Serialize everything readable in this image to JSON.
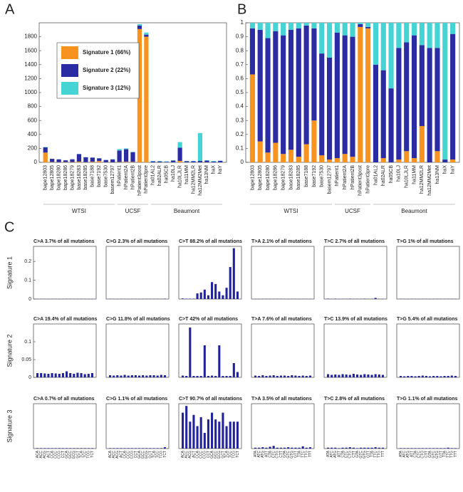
{
  "chart_data": [
    {
      "type": "stacked_bar",
      "panel": "A",
      "legend": "upper left",
      "ylim": [
        0,
        2000
      ],
      "yticks": [
        0,
        200,
        400,
        600,
        800,
        1000,
        1200,
        1400,
        1600,
        1800
      ],
      "categories": [
        "bape12803",
        "bape12805",
        "bape18280",
        "bape18286",
        "bape18279",
        "base18283",
        "base18285",
        "base7188",
        "base7192",
        "base7530",
        "basem12797",
        "hPatient1",
        "hPatient2A",
        "hPatient2B",
        "hPatient3post",
        "hPatient3pre",
        "ha01AL2",
        "ha02ALR",
        "ha05CB",
        "ha10LJ",
        "ha10LJLR",
        "ha11MM",
        "ha12MM2LR",
        "ha12MM2Met",
        "ha13NM",
        "haX",
        "haY"
      ],
      "groups": [
        {
          "label": "WTSI",
          "size": 11
        },
        {
          "label": "UCSF",
          "size": 5
        },
        {
          "label": "Beaumont",
          "size": 11
        }
      ],
      "series": [
        {
          "name": "Signature 1 (66%)",
          "color": "#f7931e",
          "values": [
            140,
            5,
            3,
            4,
            4,
            10,
            3,
            8,
            18,
            2,
            1,
            5,
            8,
            6,
            1910,
            1800,
            0,
            1,
            0,
            1,
            20,
            1,
            0,
            0,
            1,
            0,
            1
          ]
        },
        {
          "name": "Signature 2 (22%)",
          "color": "#2b2ca3",
          "values": [
            75,
            45,
            40,
            25,
            40,
            108,
            70,
            60,
            40,
            32,
            40,
            165,
            180,
            140,
            50,
            30,
            14,
            12,
            8,
            24,
            190,
            15,
            16,
            20,
            24,
            10,
            20
          ]
        },
        {
          "name": "Signature 3 (12%)",
          "color": "#45d3d3",
          "values": [
            5,
            0,
            2,
            1,
            1,
            2,
            2,
            2,
            2,
            1,
            4,
            20,
            12,
            4,
            20,
            30,
            6,
            7,
            7,
            5,
            80,
            4,
            4,
            400,
            5,
            10,
            4
          ]
        }
      ]
    },
    {
      "type": "stacked_bar",
      "panel": "B",
      "ylim": [
        0,
        1
      ],
      "yticks": [
        0,
        0.1,
        0.2,
        0.3,
        0.4,
        0.5,
        0.6,
        0.7,
        0.8,
        0.9,
        1
      ],
      "categories": [
        "bape12803",
        "bape12805",
        "bape18280",
        "bape18286",
        "bape18279",
        "base18283",
        "base18285",
        "base7188",
        "base7192",
        "base7530",
        "basem12797",
        "hPatient1",
        "hPatient2A",
        "hPatient2B",
        "hPatient3post",
        "hPatient3pre",
        "ha01AL2",
        "ha02ALR",
        "ha05CB",
        "ha10LJ",
        "ha10LJLR",
        "ha11MM",
        "ha12MM2LR",
        "ha12MM2Met",
        "ha13NM",
        "haX",
        "haY"
      ],
      "groups": [
        {
          "label": "WTSI",
          "size": 11
        },
        {
          "label": "UCSF",
          "size": 5
        },
        {
          "label": "Beaumont",
          "size": 11
        }
      ],
      "series": [
        {
          "color": "#f7931e",
          "values": [
            0.63,
            0.15,
            0.07,
            0.14,
            0.06,
            0.09,
            0.04,
            0.13,
            0.3,
            0.05,
            0.02,
            0.03,
            0.06,
            0.04,
            0.97,
            0.96,
            0,
            0.03,
            0,
            0.02,
            0.08,
            0.03,
            0.26,
            0,
            0.08,
            0,
            0.02
          ]
        },
        {
          "color": "#2b2ca3",
          "values": [
            0.33,
            0.8,
            0.82,
            0.8,
            0.85,
            0.86,
            0.92,
            0.85,
            0.66,
            0.73,
            0.73,
            0.9,
            0.85,
            0.86,
            0.02,
            0.01,
            0.7,
            0.63,
            0.53,
            0.8,
            0.78,
            0.88,
            0.58,
            0.82,
            0.74,
            0.02,
            0.9
          ]
        },
        {
          "color": "#45d3d3",
          "values": [
            0.04,
            0.05,
            0.11,
            0.06,
            0.09,
            0.05,
            0.04,
            0.02,
            0.04,
            0.22,
            0.25,
            0.07,
            0.09,
            0.1,
            0.01,
            0.03,
            0.3,
            0.34,
            0.47,
            0.18,
            0.14,
            0.09,
            0.16,
            0.18,
            0.18,
            0.98,
            0.08
          ]
        }
      ]
    },
    {
      "type": "bar",
      "panel": "C",
      "ylabel": "Signature 1",
      "title": "C>A 3.7% of all mutations",
      "color": "#22229a",
      "ylim": [
        0,
        0.28
      ],
      "yticks": [
        0,
        0.1,
        0.2
      ],
      "values": [
        0.001,
        0.001,
        0.001,
        0.001,
        0.001,
        0.001,
        0.001,
        0.001,
        0.001,
        0.001,
        0.001,
        0.001,
        0.001,
        0.001,
        0.001,
        0.001
      ]
    },
    {
      "type": "bar",
      "title": "C>G 2.3% of all mutations",
      "color": "#22229a",
      "ylim": [
        0,
        0.28
      ],
      "values": [
        0.001,
        0.001,
        0.001,
        0.001,
        0.001,
        0.001,
        0.001,
        0.001,
        0.001,
        0.001,
        0.001,
        0.001,
        0.001,
        0.001,
        0.001,
        0.002
      ]
    },
    {
      "type": "bar",
      "title": "C>T 88.2% of all mutations",
      "color": "#22229a",
      "ylim": [
        0,
        0.28
      ],
      "values": [
        0.003,
        0.002,
        0.002,
        0.002,
        0.03,
        0.035,
        0.05,
        0.02,
        0.09,
        0.08,
        0.04,
        0.02,
        0.06,
        0.17,
        0.27,
        0.04
      ]
    },
    {
      "type": "bar",
      "title": "T>A 2.1% of all mutations",
      "color": "#22229a",
      "ylim": [
        0,
        0.28
      ],
      "values": [
        0.001,
        0.001,
        0.001,
        0.001,
        0.001,
        0.001,
        0.001,
        0.001,
        0.001,
        0.001,
        0.001,
        0.001,
        0.001,
        0.001,
        0.001,
        0.001
      ]
    },
    {
      "type": "bar",
      "title": "T>C 2.7% of all mutations",
      "color": "#22229a",
      "ylim": [
        0,
        0.28
      ],
      "values": [
        0.002,
        0.001,
        0.002,
        0.001,
        0.001,
        0.001,
        0.002,
        0.001,
        0.001,
        0.001,
        0.002,
        0.001,
        0.001,
        0.006,
        0.001,
        0.001
      ]
    },
    {
      "type": "bar",
      "title": "T>G 1% of all mutations",
      "color": "#22229a",
      "ylim": [
        0,
        0.28
      ],
      "values": [
        0.001,
        0.001,
        0.001,
        0.001,
        0.001,
        0.001,
        0.001,
        0.001,
        0.001,
        0.001,
        0.001,
        0.001,
        0.001,
        0.001,
        0.001,
        0.001
      ]
    },
    {
      "type": "bar",
      "ylabel": "Signature 2",
      "title": "C>A 19.4% of all mutations",
      "color": "#22229a",
      "ylim": [
        0,
        0.15
      ],
      "yticks": [
        0,
        0.05,
        0.1
      ],
      "values": [
        0.012,
        0.012,
        0.011,
        0.01,
        0.012,
        0.011,
        0.01,
        0.012,
        0.017,
        0.012,
        0.01,
        0.013,
        0.012,
        0.009,
        0.01,
        0.012
      ]
    },
    {
      "type": "bar",
      "title": "C>G 11.8% of all mutations",
      "color": "#22229a",
      "ylim": [
        0,
        0.15
      ],
      "values": [
        0.006,
        0.005,
        0.006,
        0.005,
        0.007,
        0.005,
        0.006,
        0.006,
        0.005,
        0.006,
        0.005,
        0.006,
        0.006,
        0.005,
        0.007,
        0.006
      ]
    },
    {
      "type": "bar",
      "title": "C>T 42% of all mutations",
      "color": "#22229a",
      "ylim": [
        0,
        0.15
      ],
      "values": [
        0.005,
        0.004,
        0.14,
        0.004,
        0.004,
        0.004,
        0.09,
        0.004,
        0.005,
        0.004,
        0.09,
        0.004,
        0.004,
        0.004,
        0.04,
        0.015
      ]
    },
    {
      "type": "bar",
      "title": "T>A 7.6% of all mutations",
      "color": "#22229a",
      "ylim": [
        0,
        0.15
      ],
      "values": [
        0.005,
        0.004,
        0.006,
        0.004,
        0.005,
        0.006,
        0.004,
        0.005,
        0.005,
        0.004,
        0.006,
        0.005,
        0.004,
        0.005,
        0.004,
        0.005
      ]
    },
    {
      "type": "bar",
      "title": "T>C 13.9% of all mutations",
      "color": "#22229a",
      "ylim": [
        0,
        0.15
      ],
      "values": [
        0.009,
        0.007,
        0.008,
        0.007,
        0.009,
        0.008,
        0.007,
        0.01,
        0.008,
        0.007,
        0.009,
        0.008,
        0.007,
        0.009,
        0.008,
        0.007
      ]
    },
    {
      "type": "bar",
      "title": "T>G 5.4% of all mutations",
      "color": "#22229a",
      "ylim": [
        0,
        0.15
      ],
      "values": [
        0.004,
        0.003,
        0.004,
        0.004,
        0.003,
        0.004,
        0.005,
        0.004,
        0.003,
        0.004,
        0.004,
        0.003,
        0.004,
        0.004,
        0.005,
        0.004
      ]
    },
    {
      "type": "bar",
      "ylabel": "Signature 3",
      "title": "C>A 0.7% of all mutations",
      "color": "#22229a",
      "ylim": [
        0,
        0.1
      ],
      "categories": [
        "ACA",
        "ACC",
        "ACG",
        "ACT",
        "CCA",
        "CCC",
        "CCG",
        "CCT",
        "GCA",
        "GCC",
        "GCG",
        "GCT",
        "TCA",
        "TCC",
        "TCG",
        "TCT"
      ],
      "values": [
        0.001,
        0.001,
        0.001,
        0.001,
        0.001,
        0.001,
        0.001,
        0.001,
        0.001,
        0.001,
        0.001,
        0.001,
        0.001,
        0.001,
        0.001,
        0.001
      ]
    },
    {
      "type": "bar",
      "title": "C>G 1.1% of all mutations",
      "color": "#22229a",
      "ylim": [
        0,
        0.1
      ],
      "categories": [
        "ACA",
        "ACC",
        "ACG",
        "ACT",
        "CCA",
        "CCC",
        "CCG",
        "CCT",
        "GCA",
        "GCC",
        "GCG",
        "GCT",
        "TCA",
        "TCC",
        "TCG",
        "TCT"
      ],
      "values": [
        0.001,
        0.001,
        0.001,
        0.001,
        0.001,
        0.001,
        0.001,
        0.001,
        0.001,
        0.001,
        0.001,
        0.001,
        0.001,
        0.001,
        0.001,
        0.003
      ]
    },
    {
      "type": "bar",
      "title": "C>T 90.7% of all mutations",
      "color": "#22229a",
      "ylim": [
        0,
        0.1
      ],
      "categories": [
        "ACA",
        "ACC",
        "ACG",
        "ACT",
        "CCA",
        "CCC",
        "CCG",
        "CCT",
        "GCA",
        "GCC",
        "GCG",
        "GCT",
        "TCA",
        "TCC",
        "TCG",
        "TCT"
      ],
      "values": [
        0.08,
        0.095,
        0.06,
        0.075,
        0.05,
        0.07,
        0.035,
        0.065,
        0.08,
        0.065,
        0.06,
        0.08,
        0.05,
        0.06,
        0.06,
        0.06
      ]
    },
    {
      "type": "bar",
      "title": "T>A 3.5% of all mutations",
      "color": "#22229a",
      "ylim": [
        0,
        0.1
      ],
      "categories": [
        "ATA",
        "ATC",
        "ATG",
        "ATT",
        "CTA",
        "CTC",
        "CTG",
        "CTT",
        "GTA",
        "GTC",
        "GTG",
        "GTT",
        "TTA",
        "TTC",
        "TTG",
        "TTT"
      ],
      "values": [
        0.002,
        0.002,
        0.003,
        0.002,
        0.004,
        0.006,
        0.002,
        0.002,
        0.002,
        0.003,
        0.002,
        0.002,
        0.002,
        0.005,
        0.002,
        0.003
      ]
    },
    {
      "type": "bar",
      "title": "T>C 2.8% of all mutations",
      "color": "#22229a",
      "ylim": [
        0,
        0.1
      ],
      "categories": [
        "ATA",
        "ATC",
        "ATG",
        "ATT",
        "CTA",
        "CTC",
        "CTG",
        "CTT",
        "GTA",
        "GTC",
        "GTG",
        "GTT",
        "TTA",
        "TTC",
        "TTG",
        "TTT"
      ],
      "values": [
        0.002,
        0.002,
        0.002,
        0.001,
        0.002,
        0.002,
        0.003,
        0.002,
        0.001,
        0.002,
        0.002,
        0.002,
        0.002,
        0.003,
        0.002,
        0.002
      ]
    },
    {
      "type": "bar",
      "title": "T>G 1.1% of all mutations",
      "color": "#22229a",
      "ylim": [
        0,
        0.1
      ],
      "categories": [
        "ATA",
        "ATC",
        "ATG",
        "ATT",
        "CTA",
        "CTC",
        "CTG",
        "CTT",
        "GTA",
        "GTC",
        "GTG",
        "GTT",
        "TTA",
        "TTC",
        "TTG",
        "TTT"
      ],
      "values": [
        0.001,
        0.001,
        0.001,
        0.001,
        0.001,
        0.001,
        0.001,
        0.001,
        0.001,
        0.001,
        0.001,
        0.001,
        0.001,
        0.002,
        0.001,
        0.001
      ]
    }
  ]
}
